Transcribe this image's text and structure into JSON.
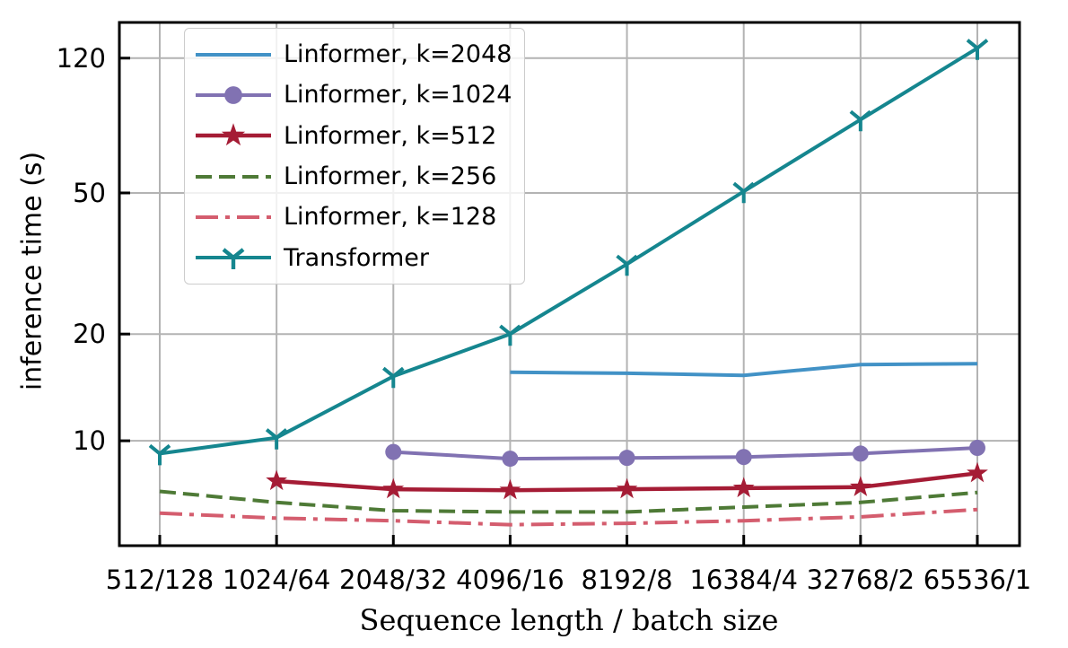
{
  "chart_data": {
    "type": "line",
    "title": "",
    "xlabel": "Sequence length / batch size",
    "ylabel": "inference time (s)",
    "y_scale": "log",
    "ylim": [
      5.06,
      151.3
    ],
    "grid": true,
    "legend_position": "upper left",
    "categories": [
      "512/128",
      "1024/64",
      "2048/32",
      "4096/16",
      "8192/8",
      "16384/4",
      "32768/2",
      "65536/1"
    ],
    "y_ticks": [
      10,
      20,
      50,
      120
    ],
    "y_tick_labels": [
      "10",
      "20",
      "50",
      "120"
    ],
    "series": [
      {
        "name": "Linformer, k=2048",
        "color": "#4292c6",
        "style": "solid",
        "marker": "none",
        "values": [
          null,
          null,
          null,
          15.6,
          15.5,
          15.3,
          16.4,
          16.5
        ]
      },
      {
        "name": "Linformer, k=1024",
        "color": "#8172b2",
        "style": "solid",
        "marker": "circle",
        "values": [
          null,
          null,
          9.3,
          8.9,
          8.95,
          9.0,
          9.2,
          9.55
        ]
      },
      {
        "name": "Linformer, k=512",
        "color": "#a51c35",
        "style": "solid",
        "marker": "star",
        "values": [
          null,
          7.7,
          7.3,
          7.25,
          7.3,
          7.35,
          7.4,
          8.1
        ]
      },
      {
        "name": "Linformer, k=256",
        "color": "#4e7a36",
        "style": "dashed",
        "marker": "none",
        "values": [
          7.2,
          6.7,
          6.35,
          6.3,
          6.3,
          6.5,
          6.7,
          7.15
        ]
      },
      {
        "name": "Linformer, k=128",
        "color": "#d45d6e",
        "style": "dashdot",
        "marker": "none",
        "values": [
          6.25,
          6.05,
          5.95,
          5.8,
          5.85,
          5.95,
          6.1,
          6.4
        ]
      },
      {
        "name": "Transformer",
        "color": "#15868f",
        "style": "solid",
        "marker": "tri_down",
        "values": [
          9.2,
          10.2,
          15.2,
          20.0,
          31.5,
          50.5,
          80.5,
          128
        ]
      }
    ],
    "colors": {
      "grid": "#b3b3b3",
      "frame": "#000000",
      "text": "#000000",
      "legend_border": "#cccccc"
    }
  }
}
